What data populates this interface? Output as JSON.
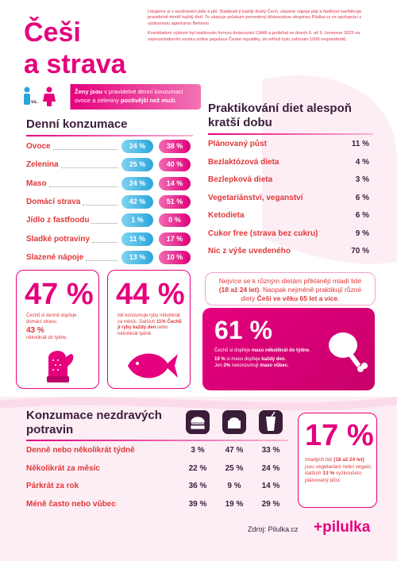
{
  "header": {
    "title_line1": "Češi",
    "title_line2": "a strava",
    "intro": [
      "Libujeme si v nezdravém jídle a pití. Sladkosti jí každý druhý Čech, slazené nápoje pije a fastfood navštěvuje pravidelně téměř každý třetí. To ukazuje průzkum provedený lékárenskou skupinou Pilulka.cz ve spolupráci s výzkumnou agenturou Behavio.",
      "Kvantitativní výzkum byl realizován formou dotazování CAWI a probíhal ve dnech 6. až 9. července 2023 na reprezentativním vzorku online populace České republiky, do něhož bylo zahrnuto 1000 respondentů."
    ]
  },
  "banner": {
    "vs": "vs.",
    "parts": [
      "Ženy jsou",
      " v pravidelné denní konzumaci ovoce a zeleniny ",
      "poctivější než muži."
    ]
  },
  "daily": {
    "title": "Denní konzumace",
    "rows": [
      {
        "label": "Ovoce",
        "men": "24 %",
        "women": "38 %"
      },
      {
        "label": "Zelenina",
        "men": "25 %",
        "women": "40 %"
      },
      {
        "label": "Maso",
        "men": "24 %",
        "women": "14 %"
      },
      {
        "label": "Domácí strava",
        "men": "42 %",
        "women": "51 %"
      },
      {
        "label": "Jídlo z fastfoodu",
        "men": "1 %",
        "women": "0 %"
      },
      {
        "label": "Sladké potraviny",
        "men": "11 %",
        "women": "17 %"
      },
      {
        "label": "Slazené nápoje",
        "men": "13 %",
        "women": "10 %"
      }
    ]
  },
  "diets": {
    "title": "Praktikování diet alespoň kratší dobu",
    "rows": [
      {
        "label": "Plánovaný půst",
        "value": "11 %"
      },
      {
        "label": "Bezlaktózová dieta",
        "value": "4 %"
      },
      {
        "label": "Bezlepková dieta",
        "value": "3 %"
      },
      {
        "label": "Vegetariánství, veganství",
        "value": "6 %"
      },
      {
        "label": "Ketodieta",
        "value": "6 %"
      },
      {
        "label": "Cukor free (strava bez cukru)",
        "value": "9 %"
      },
      {
        "label": "Nic z výše uvedeného",
        "value": "70 %"
      }
    ]
  },
  "homemade": {
    "value": "47 %",
    "text": "Čechů si denně dopřeje domácí stravu.",
    "value2": "43 %",
    "text2": "několikrát do týdne."
  },
  "fish": {
    "value": "44 %",
    "parts": [
      "lidí konzumuje ryby několikrát za měsíc. Dalších ",
      "11% Čechů jí ryby každý den",
      " nebo několikrát týdně."
    ]
  },
  "note": {
    "parts": [
      "Nejvíce se k různým dietám přiklánějí mladí lidé ",
      "(18 až 24 let)",
      ". Naopak nejméně praktikují různé diety ",
      "Češi ve věku 65 let a více",
      "."
    ]
  },
  "meat": {
    "value": "61 %",
    "line1": [
      "Čechů si dopřeje ",
      "maso několikrát do týdne."
    ],
    "line2": [
      "19 %",
      " si maso dopřeje ",
      "každý den."
    ],
    "line3": [
      "Jen ",
      "2%",
      " nekonzumují ",
      "maso vůbec."
    ]
  },
  "unhealthy": {
    "title": "Konzumace nezdravých potravin",
    "rows": [
      {
        "label": "Denně nebo několikrát týdně",
        "values": [
          "3 %",
          "47 %",
          "33 %"
        ]
      },
      {
        "label": "Několikrát za měsíc",
        "values": [
          "22 %",
          "25 %",
          "24 %"
        ]
      },
      {
        "label": "Párkrát za rok",
        "values": [
          "36 %",
          "9 %",
          "14 %"
        ]
      },
      {
        "label": "Méně často nebo vůbec",
        "values": [
          "39 %",
          "19 %",
          "29 %"
        ]
      }
    ]
  },
  "young": {
    "value": "17 %",
    "parts": [
      "mladých lidí ",
      "(18 až 24 let)",
      " jsou vegetariáni nebo vegani, dalších ",
      "13 %",
      " vyzkoušelo plánovaný půst."
    ]
  },
  "footer": {
    "source": "Zdroj: Pilulka.cz",
    "brand": "+pilulka"
  }
}
